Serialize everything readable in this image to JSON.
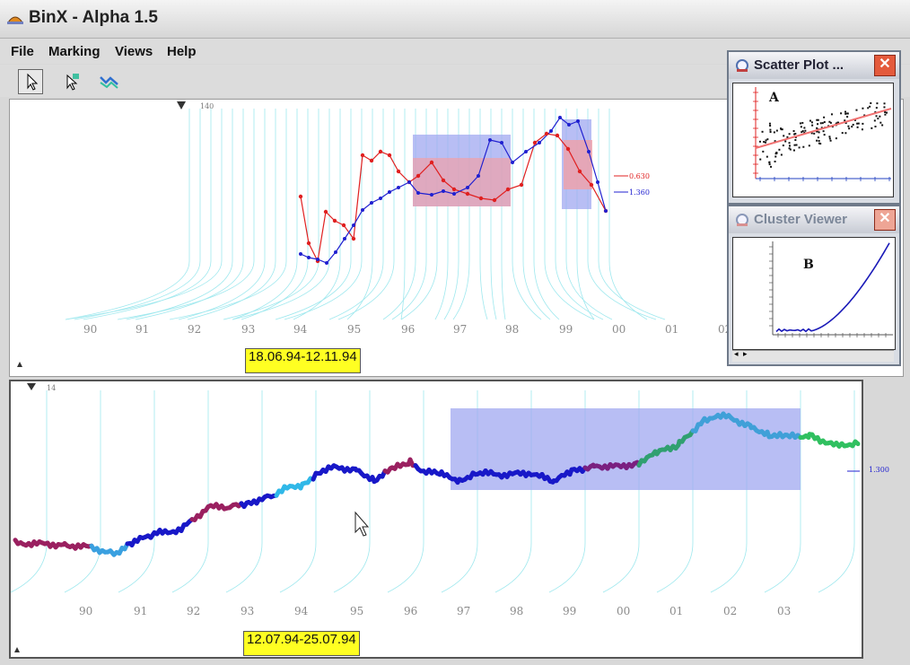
{
  "app": {
    "title": "BinX - Alpha 1.5"
  },
  "menu": {
    "items": [
      "File",
      "Marking",
      "Views",
      "Help"
    ]
  },
  "toolbar": {
    "tools": [
      "select-arrow-icon",
      "marking-arrow-icon",
      "zoom-timeline-icon"
    ]
  },
  "top_panel": {
    "scale_marker": "140",
    "years": [
      "90",
      "91",
      "92",
      "93",
      "94",
      "95",
      "96",
      "97",
      "98",
      "99",
      "00",
      "01",
      "02"
    ],
    "range_label": "18.06.94-12.11.94",
    "legend": [
      {
        "label": "0.630",
        "color": "#e02020"
      },
      {
        "label": "1.360",
        "color": "#2020d0"
      }
    ]
  },
  "bottom_panel": {
    "scale_marker": "14",
    "years": [
      "90",
      "91",
      "92",
      "93",
      "94",
      "95",
      "96",
      "97",
      "98",
      "99",
      "00",
      "01",
      "02",
      "03"
    ],
    "range_label": "12.07.94-25.07.94",
    "value_label": "1.300"
  },
  "scatter_window": {
    "title": "Scatter Plot ...",
    "label": "A"
  },
  "cluster_window": {
    "title": "Cluster Viewer",
    "label": "B"
  },
  "colors": {
    "marked_blue": "#a0a8f0",
    "marked_red": "#f0a0a8",
    "series_red": "#e02020",
    "series_blue": "#2020d0",
    "highlight": "#ffff22"
  }
}
